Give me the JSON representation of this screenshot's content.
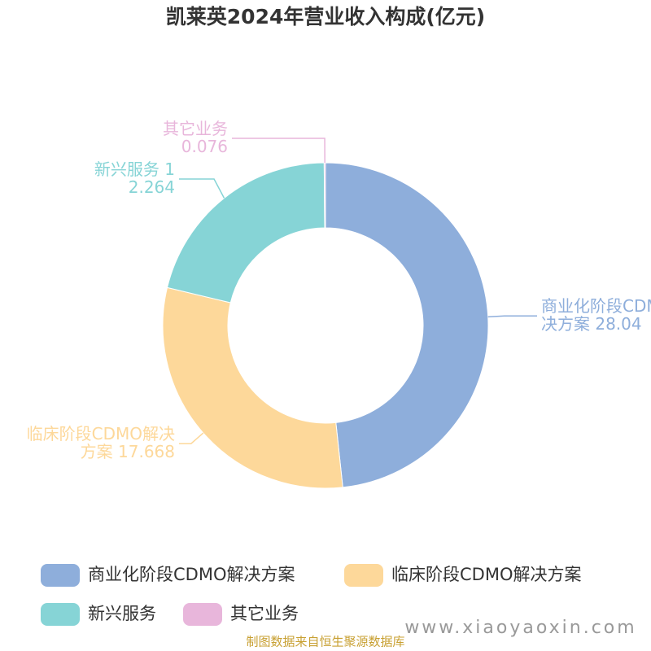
{
  "chart_data": {
    "type": "donut",
    "title": "凯莱英2024年营业收入构成(亿元)",
    "series": [
      {
        "name": "商业化阶段CDMO解决方案",
        "color": "#8eaedb",
        "values": [
          28.04
        ]
      },
      {
        "name": "临床阶段CDMO解决方案",
        "color": "#fdd89a",
        "values": [
          17.668
        ]
      },
      {
        "name": "新兴服务",
        "color": "#86d4d6",
        "values": [
          12.264
        ]
      },
      {
        "name": "其它业务",
        "color": "#e8b6db",
        "values": [
          0.076
        ]
      }
    ],
    "source": "制图数据来自恒生聚源数据库",
    "watermark": "www.xiaoyaoxin.com"
  }
}
